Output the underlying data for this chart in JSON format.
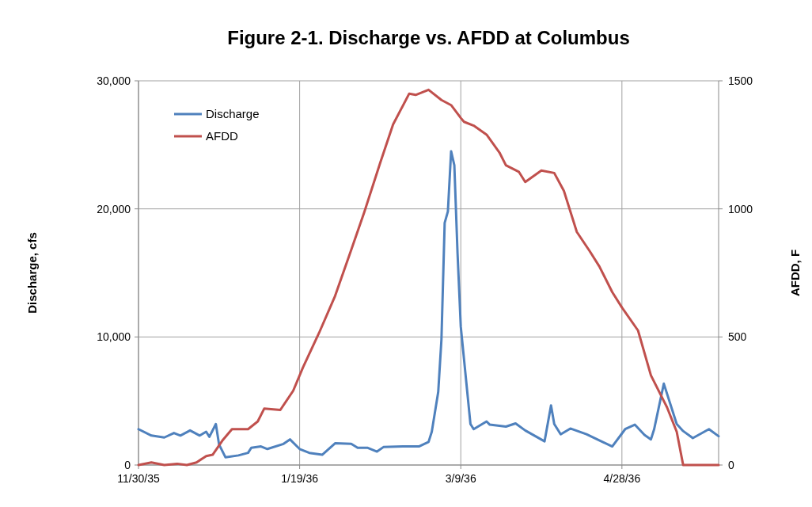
{
  "chart_data": {
    "type": "line",
    "title": "Figure 2-1.  Discharge vs. AFDD at Columbus",
    "ylabel": "Discharge, cfs",
    "y2label": "AFDD, F",
    "xlim": [
      "1935-11-30",
      "1936-05-28"
    ],
    "xticks": [
      {
        "value": "1935-11-30",
        "label": "11/30/35"
      },
      {
        "value": "1936-01-19",
        "label": "1/19/36"
      },
      {
        "value": "1936-03-09",
        "label": "3/9/36"
      },
      {
        "value": "1936-04-28",
        "label": "4/28/36"
      }
    ],
    "ylim": [
      0,
      30000
    ],
    "yticks": [
      0,
      {
        "value": 10000,
        "label": "10,000"
      },
      {
        "value": 20000,
        "label": "20,000"
      },
      {
        "value": 30000,
        "label": "30,000"
      }
    ],
    "y2lim": [
      0,
      1500
    ],
    "y2ticks": [
      0,
      500,
      1000,
      1500
    ],
    "grid": true,
    "legend": "top left",
    "series": [
      {
        "name": "Discharge",
        "color": "#4f81bd",
        "x": [
          "1935-11-30",
          "1935-12-04",
          "1935-12-08",
          "1935-12-11",
          "1935-12-13",
          "1935-12-16",
          "1935-12-19",
          "1935-12-21",
          "1935-12-22",
          "1935-12-24",
          "1935-12-25",
          "1935-12-27",
          "1935-12-31",
          "1936-01-03",
          "1936-01-04",
          "1936-01-07",
          "1936-01-09",
          "1936-01-14",
          "1936-01-16",
          "1936-01-19",
          "1936-01-22",
          "1936-01-26",
          "1936-01-30",
          "1936-02-04",
          "1936-02-06",
          "1936-02-09",
          "1936-02-12",
          "1936-02-14",
          "1936-02-20",
          "1936-02-25",
          "1936-02-28",
          "1936-02-29",
          "1936-03-02",
          "1936-03-03",
          "1936-03-04",
          "1936-03-05",
          "1936-03-06",
          "1936-03-07",
          "1936-03-08",
          "1936-03-09",
          "1936-03-12",
          "1936-03-13",
          "1936-03-17",
          "1936-03-18",
          "1936-03-23",
          "1936-03-26",
          "1936-03-29",
          "1936-04-04",
          "1936-04-06",
          "1936-04-07",
          "1936-04-09",
          "1936-04-12",
          "1936-04-17",
          "1936-04-22",
          "1936-04-25",
          "1936-04-29",
          "1936-05-02",
          "1936-05-05",
          "1936-05-07",
          "1936-05-08",
          "1936-05-11",
          "1936-05-15",
          "1936-05-17",
          "1936-05-20",
          "1936-05-25",
          "1936-05-28"
        ],
        "values": [
          2800,
          2300,
          2150,
          2500,
          2300,
          2700,
          2300,
          2600,
          2200,
          3200,
          1600,
          600,
          750,
          950,
          1350,
          1450,
          1250,
          1650,
          2000,
          1250,
          950,
          800,
          1700,
          1650,
          1350,
          1350,
          1050,
          1400,
          1450,
          1450,
          1800,
          2600,
          5700,
          9800,
          18900,
          19800,
          24500,
          23400,
          16500,
          10800,
          3200,
          2800,
          3400,
          3150,
          3000,
          3250,
          2700,
          1850,
          4650,
          3200,
          2400,
          2850,
          2400,
          1800,
          1450,
          2800,
          3150,
          2350,
          2000,
          2800,
          6350,
          3200,
          2650,
          2100,
          2800,
          2250
        ]
      },
      {
        "name": "AFDD",
        "color": "#c0504d",
        "axis": "y2",
        "x": [
          "1935-11-30",
          "1935-12-04",
          "1935-12-08",
          "1935-12-12",
          "1935-12-15",
          "1935-12-18",
          "1935-12-21",
          "1935-12-23",
          "1935-12-26",
          "1935-12-29",
          "1936-01-03",
          "1936-01-06",
          "1936-01-08",
          "1936-01-13",
          "1936-01-17",
          "1936-01-20",
          "1936-01-25",
          "1936-01-30",
          "1936-02-04",
          "1936-02-08",
          "1936-02-13",
          "1936-02-17",
          "1936-02-22",
          "1936-02-24",
          "1936-02-28",
          "1936-03-03",
          "1936-03-06",
          "1936-03-09",
          "1936-03-10",
          "1936-03-13",
          "1936-03-17",
          "1936-03-21",
          "1936-03-23",
          "1936-03-27",
          "1936-03-29",
          "1936-04-03",
          "1936-04-07",
          "1936-04-10",
          "1936-04-14",
          "1936-04-18",
          "1936-04-21",
          "1936-04-25",
          "1936-04-28",
          "1936-05-03",
          "1936-05-07",
          "1936-05-12",
          "1936-05-15",
          "1936-05-17",
          "1936-05-28"
        ],
        "values": [
          0,
          10,
          0,
          5,
          0,
          10,
          35,
          40,
          95,
          140,
          140,
          170,
          220,
          215,
          290,
          380,
          515,
          660,
          840,
          985,
          1180,
          1330,
          1450,
          1445,
          1465,
          1425,
          1405,
          1355,
          1340,
          1325,
          1290,
          1220,
          1170,
          1145,
          1105,
          1150,
          1140,
          1070,
          910,
          835,
          775,
          675,
          615,
          525,
          350,
          225,
          130,
          0,
          0
        ]
      }
    ]
  }
}
